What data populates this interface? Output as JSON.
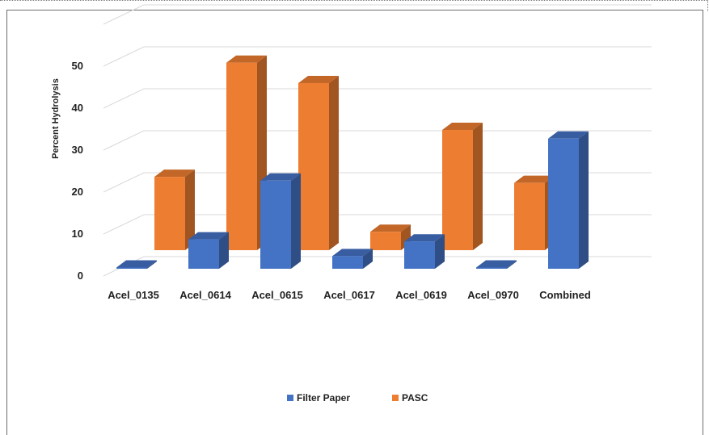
{
  "chart_data": {
    "type": "bar",
    "ylabel": "Percent  Hydrolysis",
    "xlabel": "",
    "ylim": [
      0,
      55
    ],
    "yticks": [
      0,
      10,
      20,
      30,
      40,
      50
    ],
    "grid": true,
    "legend_position": "bottom",
    "categories": [
      "Acel_0135",
      "Acel_0614",
      "Acel_0615",
      "Acel_0617",
      "Acel_0619",
      "Acel_0970",
      "Combined"
    ],
    "series": [
      {
        "name": "Filter Paper",
        "color": "#4472C4",
        "values": [
          0.3,
          7,
          21,
          3,
          6.5,
          0.3,
          31
        ]
      },
      {
        "name": "PASC",
        "color": "#ED7D31",
        "values": [
          18,
          46,
          41,
          4.5,
          29.5,
          16.5,
          0
        ]
      }
    ]
  }
}
